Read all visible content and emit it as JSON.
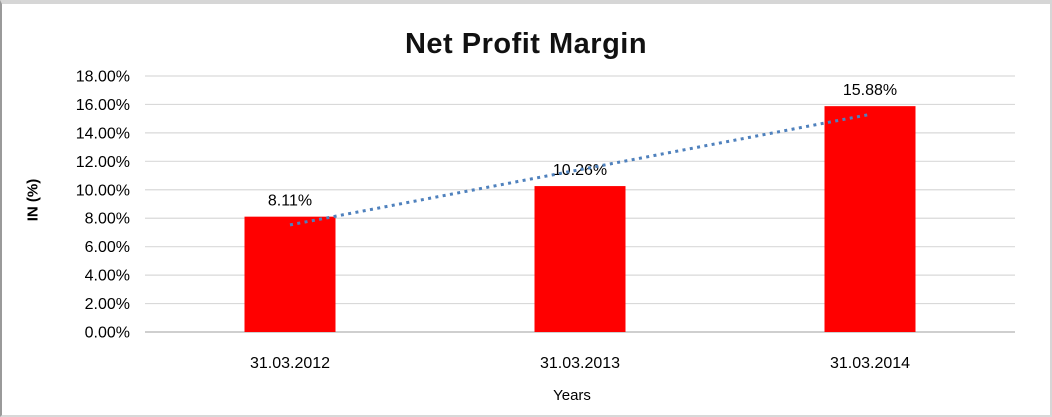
{
  "chart_data": {
    "type": "bar",
    "title": "Net Profit Margin",
    "xlabel": "Years",
    "ylabel": "IN (%)",
    "categories": [
      "31.03.2012",
      "31.03.2013",
      "31.03.2014"
    ],
    "values": [
      8.11,
      10.26,
      15.88
    ],
    "data_labels": [
      "8.11%",
      "10.26%",
      "15.88%"
    ],
    "ylim": [
      0,
      18
    ],
    "ytick_step": 2,
    "ytick_labels": [
      "0.00%",
      "2.00%",
      "4.00%",
      "6.00%",
      "8.00%",
      "10.00%",
      "12.00%",
      "14.00%",
      "16.00%",
      "18.00%"
    ],
    "grid": true,
    "legend": "none",
    "bar_color": "#FF0000",
    "gridline_color": "#D9D9D9",
    "axis_line_color": "#BFBFBF",
    "text_color": "#000000",
    "trendline": {
      "type": "linear",
      "style": "dotted",
      "color": "#4F81BD",
      "fit_values": [
        7.53,
        11.42,
        15.3
      ]
    }
  }
}
